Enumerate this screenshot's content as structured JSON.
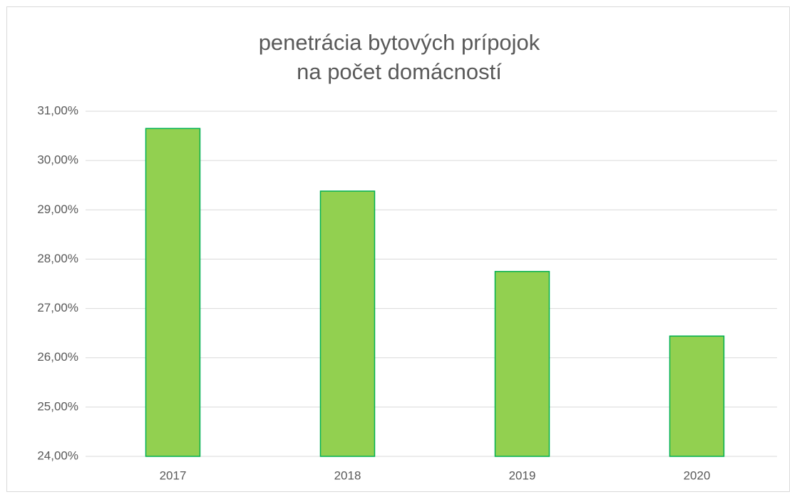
{
  "chart_data": {
    "type": "bar",
    "title": [
      "penetrácia bytových prípojok",
      "na počet domácností"
    ],
    "categories": [
      "2017",
      "2018",
      "2019",
      "2020"
    ],
    "values": [
      30.65,
      29.38,
      27.75,
      26.44
    ],
    "color": "#92d050",
    "edge_color": "#00b050",
    "ylim": [
      24,
      31
    ],
    "yticks": [
      {
        "value": 24,
        "label": "24,00%"
      },
      {
        "value": 25,
        "label": "25,00%"
      },
      {
        "value": 26,
        "label": "26,00%"
      },
      {
        "value": 27,
        "label": "27,00%"
      },
      {
        "value": 28,
        "label": "28,00%"
      },
      {
        "value": 29,
        "label": "29,00%"
      },
      {
        "value": 30,
        "label": "30,00%"
      },
      {
        "value": 31,
        "label": "31,00%"
      }
    ],
    "grid": true
  }
}
